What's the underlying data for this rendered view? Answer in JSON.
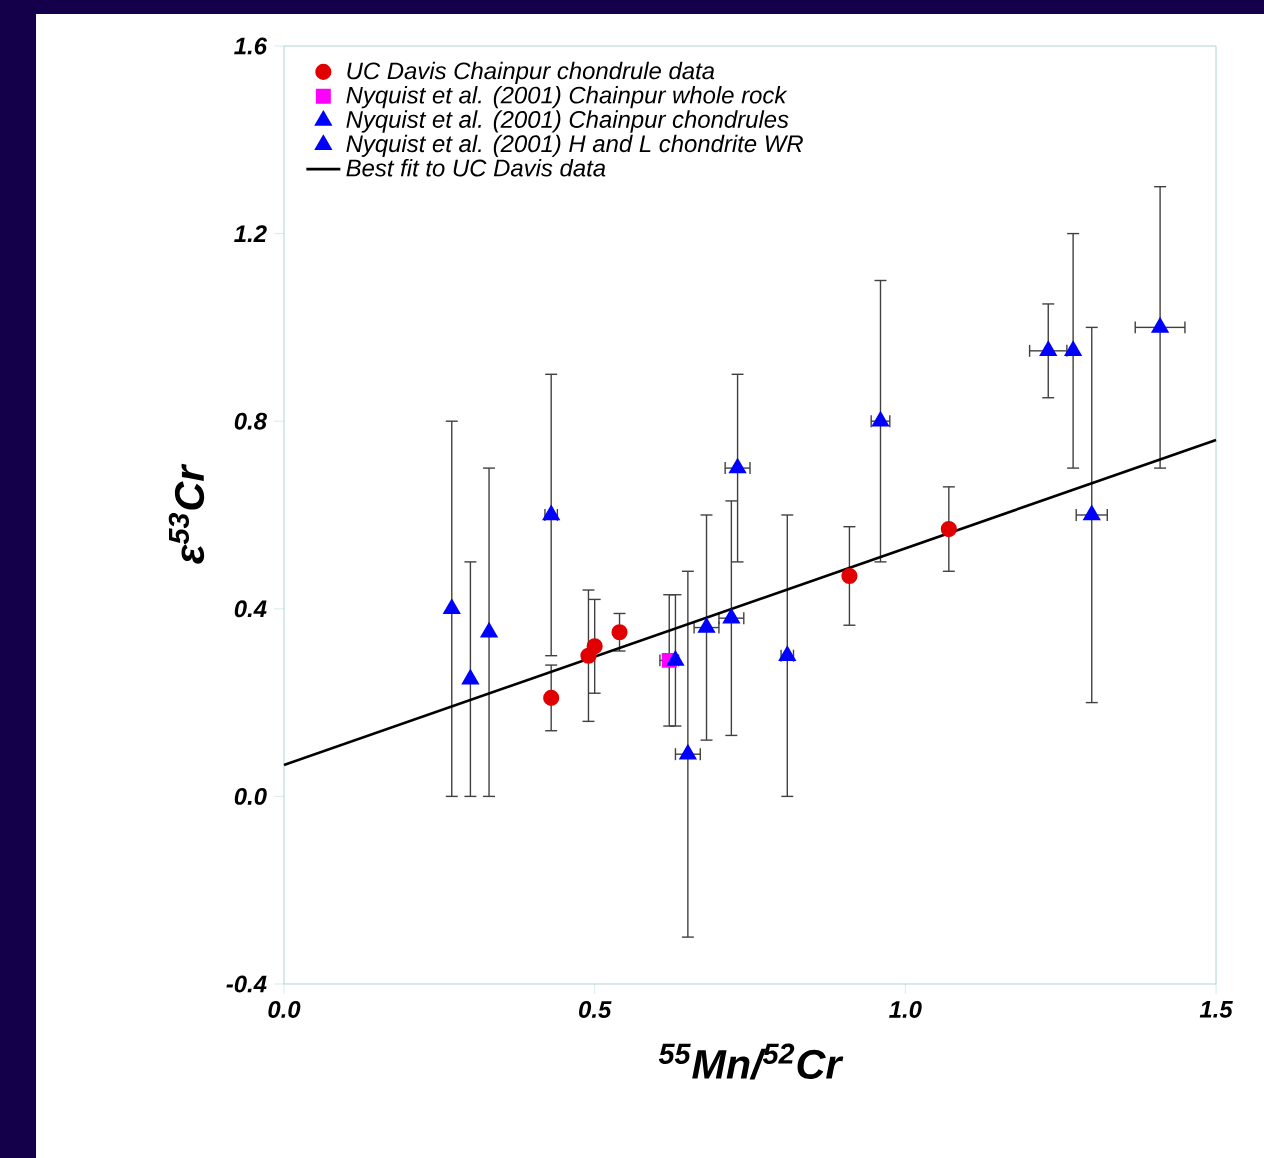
{
  "chart_data": {
    "type": "scatter",
    "xlabel": "$^{55}$Mn/$^{52}$Cr",
    "ylabel": "ε$^{53}$Cr",
    "xlim": [
      0,
      1.5
    ],
    "ylim": [
      -0.4,
      1.6
    ],
    "xticks": [
      {
        "value": 0,
        "label": "0.0"
      },
      0.5,
      {
        "value": 1,
        "label": "1.0"
      },
      1.5
    ],
    "yticks": [
      -0.4,
      {
        "value": 0,
        "label": "0.0"
      },
      0.4,
      0.8,
      1.2,
      1.6
    ],
    "legend": "top left",
    "series": [
      {
        "name": "UC Davis Chainpur chondrule data",
        "color": "#e00000",
        "marker": "circle",
        "x": [
          0.43,
          0.49,
          0.5,
          0.54,
          0.91,
          1.07
        ],
        "values": [
          0.21,
          0.3,
          0.32,
          0.35,
          0.47,
          0.57
        ],
        "errors": [
          0.07,
          0.14,
          0.1,
          0.04,
          0.105,
          0.09
        ]
      },
      {
        "name": "Nyquist et al. (2001) Chainpur whole rock",
        "color": "#ff00ff",
        "marker": "square",
        "x": [
          0.62
        ],
        "values": [
          0.29
        ],
        "errors": [
          0.14
        ],
        "xerrors": [
          0.015
        ]
      },
      {
        "name": "Nyquist et al. (2001) Chainpur chondrules",
        "color": "#0000ff",
        "marker": "triangle",
        "x": [
          0.27,
          0.3,
          0.33,
          0.43,
          0.73,
          0.81,
          0.96,
          1.23,
          1.27,
          1.3,
          1.41
        ],
        "values": [
          0.4,
          0.25,
          0.35,
          0.6,
          0.7,
          0.3,
          0.8,
          0.95,
          0.95,
          0.6,
          1.0
        ],
        "errors": [
          0.4,
          0.25,
          0.35,
          0.3,
          0.2,
          0.3,
          0.3,
          0.1,
          0.25,
          0.4,
          0.3
        ],
        "xerrors": [
          null,
          null,
          null,
          0.01,
          0.02,
          0.01,
          0.015,
          0.03,
          null,
          0.025,
          0.04
        ]
      },
      {
        "name": "Nyquist et al. (2001) H and L chondrite WR",
        "color": "#0000ff",
        "marker": "triangle",
        "x": [
          0.63,
          0.65,
          0.68,
          0.72
        ],
        "values": [
          0.29,
          0.09,
          0.36,
          0.38
        ],
        "errors": [
          0.14,
          0.39,
          0.24,
          0.25
        ],
        "xerrors": [
          null,
          0.02,
          0.02,
          0.02
        ]
      },
      {
        "name": "Best fit to UC Davis data",
        "type": "line",
        "color": "#000000",
        "marker": "none",
        "x": [
          0,
          1.5
        ],
        "values": [
          0.067,
          0.76
        ]
      }
    ]
  }
}
